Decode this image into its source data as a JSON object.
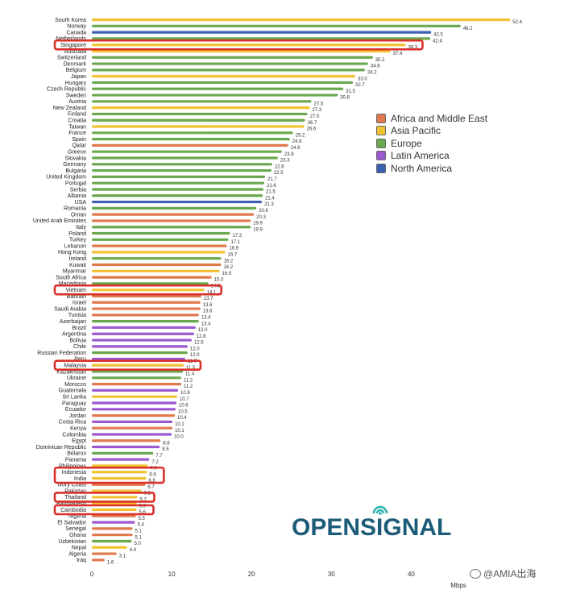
{
  "chart_data": {
    "type": "bar",
    "orientation": "horizontal",
    "xlabel": "Mbps",
    "xlim": [
      0,
      52.4
    ],
    "xticks": [
      0,
      10,
      20,
      30,
      40
    ],
    "legend_position": "right",
    "regions": {
      "africa_me": {
        "label": "Africa and Middle East",
        "color": "#e07a4e"
      },
      "asia_pacific": {
        "label": "Asia Pacific",
        "color": "#f2c230"
      },
      "europe": {
        "label": "Europe",
        "color": "#6aa84f"
      },
      "latin_america": {
        "label": "Latin America",
        "color": "#9b59d0"
      },
      "north_america": {
        "label": "North America",
        "color": "#3c5fb0"
      }
    },
    "countries": [
      {
        "name": "South Korea",
        "value": 52.4,
        "region": "asia_pacific"
      },
      {
        "name": "Norway",
        "value": 46.2,
        "region": "europe"
      },
      {
        "name": "Canada",
        "value": 42.5,
        "region": "north_america"
      },
      {
        "name": "Netherlands",
        "value": 42.4,
        "region": "europe"
      },
      {
        "name": "Singapore",
        "value": 39.3,
        "region": "asia_pacific",
        "highlight": true
      },
      {
        "name": "Australia",
        "value": 37.4,
        "region": "asia_pacific"
      },
      {
        "name": "Switzerland",
        "value": 35.2,
        "region": "europe"
      },
      {
        "name": "Denmark",
        "value": 34.6,
        "region": "europe"
      },
      {
        "name": "Belgium",
        "value": 34.2,
        "region": "europe"
      },
      {
        "name": "Japan",
        "value": 33.0,
        "region": "asia_pacific"
      },
      {
        "name": "Hungary",
        "value": 32.7,
        "region": "europe"
      },
      {
        "name": "Czech Republic",
        "value": 31.5,
        "region": "europe"
      },
      {
        "name": "Sweden",
        "value": 30.8,
        "region": "europe"
      },
      {
        "name": "Austria",
        "value": 27.5,
        "region": "europe"
      },
      {
        "name": "New Zealand",
        "value": 27.3,
        "region": "asia_pacific"
      },
      {
        "name": "Finland",
        "value": 27.0,
        "region": "europe"
      },
      {
        "name": "Croatia",
        "value": 26.7,
        "region": "europe"
      },
      {
        "name": "Taiwan",
        "value": 26.6,
        "region": "asia_pacific"
      },
      {
        "name": "France",
        "value": 25.2,
        "region": "europe"
      },
      {
        "name": "Spain",
        "value": 24.8,
        "region": "europe"
      },
      {
        "name": "Qatar",
        "value": 24.6,
        "region": "africa_me"
      },
      {
        "name": "Greece",
        "value": 23.8,
        "region": "europe"
      },
      {
        "name": "Slovakia",
        "value": 23.3,
        "region": "europe"
      },
      {
        "name": "Germany",
        "value": 22.6,
        "region": "europe"
      },
      {
        "name": "Bulgaria",
        "value": 22.5,
        "region": "europe"
      },
      {
        "name": "United Kingdom",
        "value": 21.7,
        "region": "europe"
      },
      {
        "name": "Portugal",
        "value": 21.6,
        "region": "europe"
      },
      {
        "name": "Serbia",
        "value": 21.5,
        "region": "europe"
      },
      {
        "name": "Albania",
        "value": 21.4,
        "region": "europe"
      },
      {
        "name": "USA",
        "value": 21.3,
        "region": "north_america"
      },
      {
        "name": "Romania",
        "value": 20.6,
        "region": "europe"
      },
      {
        "name": "Oman",
        "value": 20.3,
        "region": "africa_me"
      },
      {
        "name": "United Arab Emirates",
        "value": 19.9,
        "region": "africa_me"
      },
      {
        "name": "Italy",
        "value": 19.9,
        "region": "europe"
      },
      {
        "name": "Poland",
        "value": 17.3,
        "region": "europe"
      },
      {
        "name": "Turkey",
        "value": 17.1,
        "region": "europe"
      },
      {
        "name": "Lebanon",
        "value": 16.9,
        "region": "africa_me"
      },
      {
        "name": "Hong Kong",
        "value": 16.7,
        "region": "asia_pacific"
      },
      {
        "name": "Ireland",
        "value": 16.2,
        "region": "europe"
      },
      {
        "name": "Kuwait",
        "value": 16.2,
        "region": "africa_me"
      },
      {
        "name": "Myanmar",
        "value": 16.0,
        "region": "asia_pacific"
      },
      {
        "name": "South Africa",
        "value": 15.0,
        "region": "africa_me"
      },
      {
        "name": "Macedonia",
        "value": 14.6,
        "region": "europe"
      },
      {
        "name": "Vietnam",
        "value": 14.1,
        "region": "asia_pacific",
        "highlight": true
      },
      {
        "name": "Bahrain",
        "value": 13.7,
        "region": "africa_me"
      },
      {
        "name": "Israel",
        "value": 13.6,
        "region": "africa_me"
      },
      {
        "name": "Saudi Arabia",
        "value": 13.6,
        "region": "africa_me"
      },
      {
        "name": "Tunisia",
        "value": 13.4,
        "region": "africa_me"
      },
      {
        "name": "Azerbaijan",
        "value": 13.4,
        "region": "europe"
      },
      {
        "name": "Brazil",
        "value": 13.0,
        "region": "latin_america"
      },
      {
        "name": "Argentina",
        "value": 12.8,
        "region": "latin_america"
      },
      {
        "name": "Bolivia",
        "value": 12.5,
        "region": "latin_america"
      },
      {
        "name": "Chile",
        "value": 12.0,
        "region": "latin_america"
      },
      {
        "name": "Russian Federation",
        "value": 12.0,
        "region": "europe"
      },
      {
        "name": "Peru",
        "value": 11.7,
        "region": "latin_america"
      },
      {
        "name": "Malaysia",
        "value": 11.5,
        "region": "asia_pacific",
        "highlight": true
      },
      {
        "name": "Kazakhstan",
        "value": 11.4,
        "region": "europe"
      },
      {
        "name": "Ukraine",
        "value": 11.2,
        "region": "europe"
      },
      {
        "name": "Morocco",
        "value": 11.2,
        "region": "africa_me"
      },
      {
        "name": "Guatemala",
        "value": 10.8,
        "region": "latin_america"
      },
      {
        "name": "Sri Lanka",
        "value": 10.7,
        "region": "asia_pacific"
      },
      {
        "name": "Paraguay",
        "value": 10.6,
        "region": "latin_america"
      },
      {
        "name": "Ecuador",
        "value": 10.5,
        "region": "latin_america"
      },
      {
        "name": "Jordan",
        "value": 10.4,
        "region": "africa_me"
      },
      {
        "name": "Costa Rica",
        "value": 10.1,
        "region": "latin_america"
      },
      {
        "name": "Kenya",
        "value": 10.1,
        "region": "africa_me"
      },
      {
        "name": "Colombia",
        "value": 10.0,
        "region": "latin_america"
      },
      {
        "name": "Egypt",
        "value": 8.6,
        "region": "africa_me"
      },
      {
        "name": "Dominican Republic",
        "value": 8.5,
        "region": "latin_america"
      },
      {
        "name": "Belarus",
        "value": 7.7,
        "region": "europe"
      },
      {
        "name": "Panama",
        "value": 7.2,
        "region": "latin_america"
      },
      {
        "name": "Philippines",
        "value": 7.0,
        "region": "asia_pacific"
      },
      {
        "name": "Indonesia",
        "value": 6.9,
        "region": "asia_pacific",
        "highlight": true
      },
      {
        "name": "India",
        "value": 6.8,
        "region": "asia_pacific",
        "highlight": true
      },
      {
        "name": "Ivory Coast",
        "value": 6.7,
        "region": "africa_me"
      },
      {
        "name": "Pakistan",
        "value": 6.2,
        "region": "asia_pacific"
      },
      {
        "name": "Thailand",
        "value": 5.7,
        "region": "asia_pacific",
        "highlight": true
      },
      {
        "name": "Bangladesh",
        "value": 5.6,
        "region": "asia_pacific"
      },
      {
        "name": "Cambodia",
        "value": 5.6,
        "region": "asia_pacific",
        "highlight": true
      },
      {
        "name": "Nigeria",
        "value": 5.5,
        "region": "africa_me"
      },
      {
        "name": "El Salvador",
        "value": 5.4,
        "region": "latin_america"
      },
      {
        "name": "Senegal",
        "value": 5.1,
        "region": "africa_me"
      },
      {
        "name": "Ghana",
        "value": 5.1,
        "region": "africa_me"
      },
      {
        "name": "Uzbekistan",
        "value": 5.0,
        "region": "europe"
      },
      {
        "name": "Nepal",
        "value": 4.4,
        "region": "asia_pacific"
      },
      {
        "name": "Algeria",
        "value": 3.1,
        "region": "africa_me"
      },
      {
        "name": "Iraq",
        "value": 1.6,
        "region": "africa_me"
      }
    ]
  },
  "logo": {
    "part1": "OPENS",
    "part2": "I",
    "part3": "GNAL"
  },
  "watermark": {
    "text": "@AMIA出海"
  }
}
